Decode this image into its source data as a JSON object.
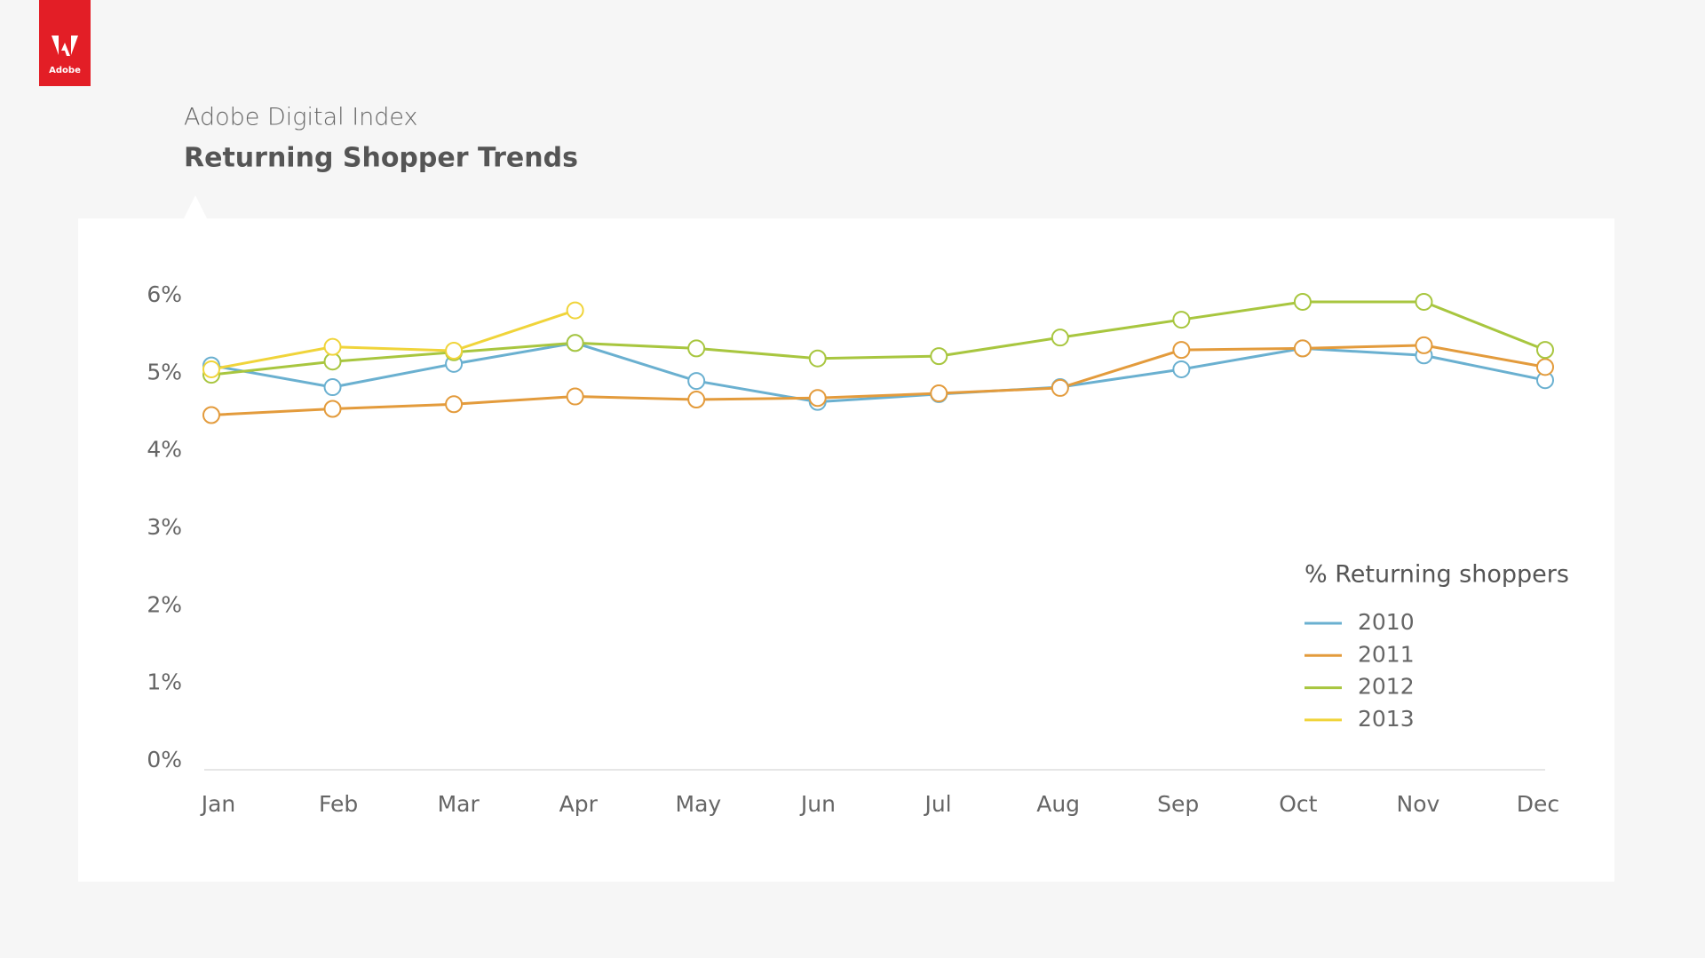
{
  "logo": "Adobe",
  "chart_data": {
    "type": "line",
    "subtitle": "Adobe Digital Index",
    "title": "Returning Shopper Trends",
    "legend_title": "% Returning shoppers",
    "legend": "right",
    "categories": [
      "Jan",
      "Feb",
      "Mar",
      "Apr",
      "May",
      "Jun",
      "Jul",
      "Aug",
      "Sep",
      "Oct",
      "Nov",
      "Dec"
    ],
    "ylim": [
      0,
      6
    ],
    "yticks": [
      {
        "value": 0,
        "label": "0%"
      },
      {
        "value": 1,
        "label": "1%"
      },
      {
        "value": 2,
        "label": "2%"
      },
      {
        "value": 3,
        "label": "3%"
      },
      {
        "value": 4,
        "label": "4%"
      },
      {
        "value": 5,
        "label": "5%"
      },
      {
        "value": 6,
        "label": "6%"
      }
    ],
    "series": [
      {
        "name": "2010",
        "color": "#6ab0d0",
        "values": [
          5.1,
          4.82,
          5.12,
          5.39,
          4.9,
          4.63,
          4.73,
          4.82,
          5.05,
          5.32,
          5.23,
          4.91
        ]
      },
      {
        "name": "2011",
        "color": "#e39b3c",
        "values": [
          4.46,
          4.54,
          4.6,
          4.7,
          4.66,
          4.68,
          4.74,
          4.81,
          5.3,
          5.32,
          5.36,
          5.08
        ]
      },
      {
        "name": "2012",
        "color": "#a8c63f",
        "values": [
          4.98,
          5.15,
          5.27,
          5.39,
          5.32,
          5.19,
          5.22,
          5.46,
          5.69,
          5.92,
          5.92,
          5.3
        ]
      },
      {
        "name": "2013",
        "color": "#f0d43a",
        "values": [
          5.05,
          5.34,
          5.29,
          5.81,
          null,
          null,
          null,
          null,
          null,
          null,
          null,
          null
        ]
      }
    ]
  }
}
